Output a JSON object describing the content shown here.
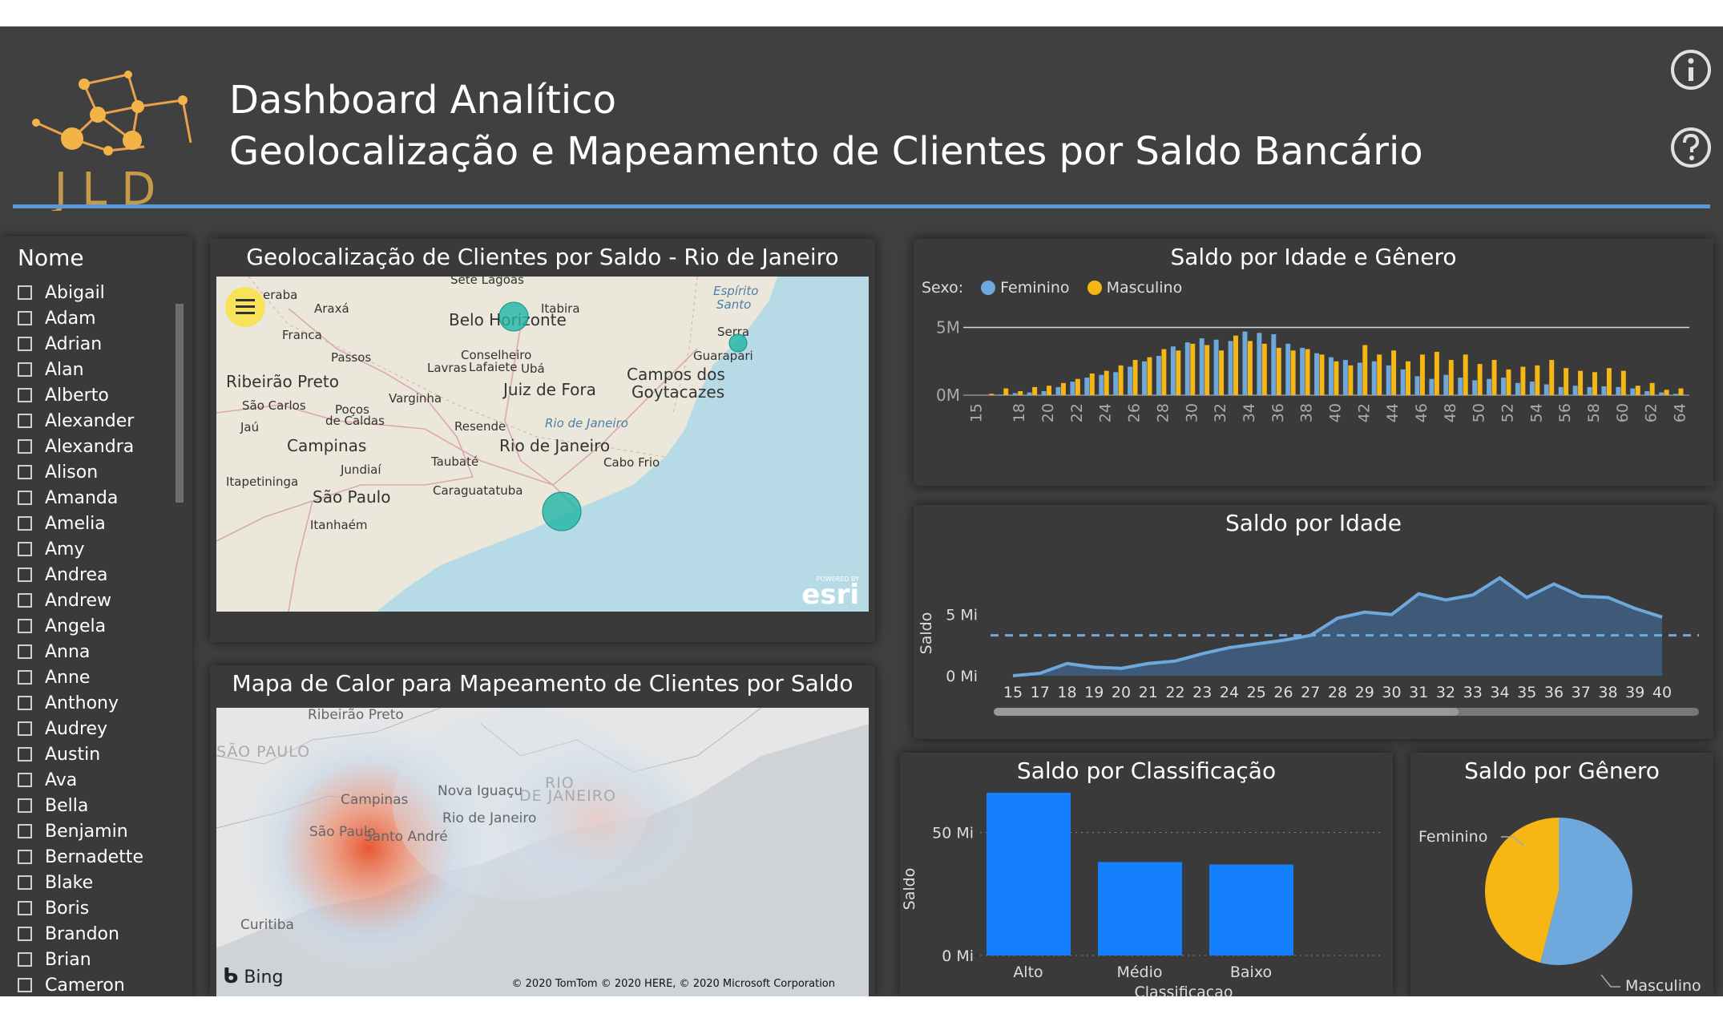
{
  "header": {
    "logo_text": "JLD",
    "title_line1": "Dashboard Analítico",
    "title_line2": "Geolocalização e Mapeamento de Clientes por Saldo Bancário"
  },
  "slicer": {
    "title": "Nome",
    "items": [
      "Abigail",
      "Adam",
      "Adrian",
      "Alan",
      "Alberto",
      "Alexander",
      "Alexandra",
      "Alison",
      "Amanda",
      "Amelia",
      "Amy",
      "Andrea",
      "Andrew",
      "Angela",
      "Anna",
      "Anne",
      "Anthony",
      "Audrey",
      "Austin",
      "Ava",
      "Bella",
      "Benjamin",
      "Bernadette",
      "Blake",
      "Boris",
      "Brandon",
      "Brian",
      "Cameron"
    ]
  },
  "map1": {
    "title": "Geolocalização de Clientes por Saldo - Rio de Janeiro",
    "attribution": "esri",
    "attribution_small": "POWERED BY",
    "labels": [
      {
        "t": "Sete Lagoas"
      },
      {
        "t": "eraba"
      },
      {
        "t": "Araxá"
      },
      {
        "t": "Itabira"
      },
      {
        "t": "Espírito"
      },
      {
        "t": "Santo"
      },
      {
        "t": "Belo Horizonte"
      },
      {
        "t": "Franca"
      },
      {
        "t": "Serra"
      },
      {
        "t": "Passos"
      },
      {
        "t": "Conselheiro"
      },
      {
        "t": "Lafaiete"
      },
      {
        "t": "Guarapari"
      },
      {
        "t": "Lavras"
      },
      {
        "t": "Ubá"
      },
      {
        "t": "Ribeirão Preto"
      },
      {
        "t": "Campos dos"
      },
      {
        "t": "Goytacazes"
      },
      {
        "t": "Juiz de Fora"
      },
      {
        "t": "Varginha"
      },
      {
        "t": "São Carlos"
      },
      {
        "t": "Poços"
      },
      {
        "t": "de Caldas"
      },
      {
        "t": "Jaú"
      },
      {
        "t": "Resende"
      },
      {
        "t": "Rio de Janeiro"
      },
      {
        "t": "Campinas"
      },
      {
        "t": "Rio de Janeiro"
      },
      {
        "t": "Taubaté"
      },
      {
        "t": "Cabo Frio"
      },
      {
        "t": "Jundiaí"
      },
      {
        "t": "Itapetininga"
      },
      {
        "t": "Caraguatatuba"
      },
      {
        "t": "São Paulo"
      },
      {
        "t": "Itanhaém"
      }
    ]
  },
  "map2": {
    "title": "Mapa de Calor para Mapeamento de Clientes por Saldo",
    "bing": "Bing",
    "copyright": "© 2020 TomTom © 2020 HERE, © 2020 Microsoft Corporation",
    "labels": [
      "Ribeirão Preto",
      "SÃO PAULO",
      "Campinas",
      "Nova Iguaçu",
      "RIO",
      "DE JANEIRO",
      "Rio de Janeiro",
      "São Paulo",
      "Santo André",
      "Curitiba"
    ]
  },
  "chart_data": [
    {
      "type": "bar",
      "title": "Saldo por Idade e Gênero",
      "legend_title": "Sexo:",
      "ytick_labels": [
        "0M",
        "5M"
      ],
      "ylim": [
        0,
        5000000
      ],
      "categories": [
        15,
        16,
        17,
        18,
        19,
        20,
        21,
        22,
        23,
        24,
        25,
        26,
        27,
        28,
        29,
        30,
        31,
        32,
        33,
        34,
        35,
        36,
        37,
        38,
        39,
        40,
        41,
        42,
        43,
        44,
        45,
        46,
        47,
        48,
        49,
        50,
        51,
        52,
        53,
        54,
        55,
        56,
        57,
        58,
        59,
        60,
        61,
        62,
        63,
        64
      ],
      "xtick_labels": [
        "15",
        "18",
        "20",
        "22",
        "24",
        "26",
        "28",
        "30",
        "32",
        "34",
        "36",
        "38",
        "40",
        "42",
        "44",
        "46",
        "48",
        "50",
        "52",
        "54",
        "56",
        "58",
        "60",
        "62",
        "64"
      ],
      "series": [
        {
          "name": "Feminino",
          "color": "#6fa8dc",
          "values": [
            0,
            0,
            50000,
            150000,
            200000,
            300000,
            600000,
            1000000,
            1300000,
            1500000,
            1700000,
            2100000,
            2500000,
            2900000,
            3600000,
            3900000,
            4200000,
            4100000,
            4000000,
            4700000,
            4600000,
            4500000,
            3800000,
            3500000,
            3100000,
            2800000,
            2600000,
            2400000,
            2500000,
            2200000,
            1900000,
            1400000,
            1200000,
            1500000,
            1300000,
            1100000,
            1200000,
            1300000,
            900000,
            1000000,
            800000,
            600000,
            700000,
            600000,
            650000,
            600000,
            500000,
            300000,
            200000,
            100000
          ]
        },
        {
          "name": "Masculino",
          "color": "#f6b614",
          "values": [
            0,
            100000,
            500000,
            300000,
            600000,
            700000,
            900000,
            1200000,
            1600000,
            1800000,
            2200000,
            2600000,
            2800000,
            3400000,
            3300000,
            3800000,
            3700000,
            3300000,
            4400000,
            4000000,
            3800000,
            3500000,
            3300000,
            3400000,
            3000000,
            2500000,
            2200000,
            3700000,
            3000000,
            3300000,
            2500000,
            3000000,
            3200000,
            2600000,
            3000000,
            2300000,
            2600000,
            1900000,
            2100000,
            2200000,
            2600000,
            2000000,
            1800000,
            1700000,
            2000000,
            1800000,
            700000,
            900000,
            400000,
            500000
          ]
        }
      ]
    },
    {
      "type": "area",
      "title": "Saldo por Idade",
      "ylabel": "Saldo",
      "ytick_labels": [
        "0 Mi",
        "5 Mi"
      ],
      "ylim": [
        0,
        7500000
      ],
      "reference_line": 3300000,
      "x": [
        15,
        17,
        18,
        19,
        20,
        21,
        22,
        23,
        24,
        25,
        26,
        27,
        28,
        29,
        30,
        31,
        32,
        33,
        34,
        35,
        36,
        37,
        38,
        39,
        40
      ],
      "values": [
        0,
        200000,
        1000000,
        700000,
        600000,
        1000000,
        1200000,
        1800000,
        2300000,
        2600000,
        2900000,
        3300000,
        4700000,
        5200000,
        5000000,
        6700000,
        6200000,
        6600000,
        8000000,
        6400000,
        7500000,
        6500000,
        6400000,
        5500000,
        4800000
      ]
    },
    {
      "type": "bar",
      "title": "Saldo por Classificação",
      "xlabel": "Classificacao",
      "ylabel": "Saldo",
      "ytick_labels": [
        "0 Mi",
        "50 Mi"
      ],
      "ylim": [
        0,
        75000000
      ],
      "categories": [
        "Alto",
        "Médio",
        "Baixo"
      ],
      "values": [
        71000000,
        38000000,
        37000000
      ]
    },
    {
      "type": "pie",
      "title": "Saldo por Gênero",
      "categories": [
        "Feminino",
        "Masculino"
      ],
      "values": [
        46,
        54
      ],
      "colors": [
        "#f6b614",
        "#6fa8dc"
      ]
    }
  ]
}
